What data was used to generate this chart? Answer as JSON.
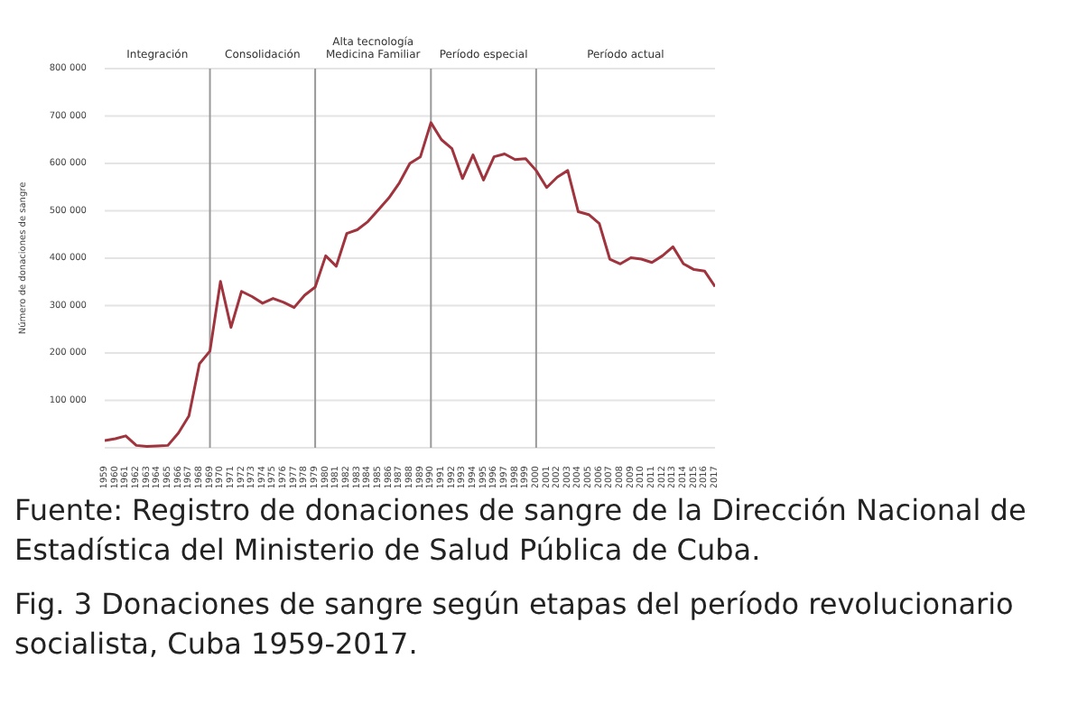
{
  "chart_data": {
    "type": "line",
    "ylabel": "Número de donaciones de sangre",
    "categories": [
      "1959",
      "1960",
      "1961",
      "1962",
      "1963",
      "1964",
      "1965",
      "1966",
      "1967",
      "1968",
      "1969",
      "1970",
      "1971",
      "1972",
      "1973",
      "1974",
      "1975",
      "1976",
      "1977",
      "1978",
      "1979",
      "1980",
      "1981",
      "1982",
      "1983",
      "1984",
      "1985",
      "1986",
      "1987",
      "1988",
      "1989",
      "1990",
      "1991",
      "1992",
      "1993",
      "1994",
      "1995",
      "1996",
      "1997",
      "1998",
      "1999",
      "2000",
      "2001",
      "2002",
      "2003",
      "2004",
      "2005",
      "2006",
      "2007",
      "2008",
      "2009",
      "2010",
      "2011",
      "2012",
      "2013",
      "2014",
      "2015",
      "2016",
      "2017"
    ],
    "series": [
      {
        "color": "#a0343e",
        "values": [
          15000,
          19000,
          25000,
          5000,
          3000,
          4000,
          5000,
          31000,
          67000,
          177000,
          204000,
          351000,
          254000,
          330000,
          319000,
          305000,
          315000,
          307000,
          296000,
          322000,
          339000,
          405000,
          383000,
          452000,
          460000,
          477000,
          502000,
          527000,
          559000,
          600000,
          614000,
          686000,
          650000,
          631000,
          568000,
          618000,
          565000,
          614000,
          620000,
          608000,
          610000,
          585000,
          549000,
          571000,
          585000,
          498000,
          492000,
          473000,
          398000,
          388000,
          401000,
          398000,
          391000,
          405000,
          424000,
          388000,
          376000,
          373000,
          340000
        ]
      }
    ],
    "ylim": [
      0,
      800000
    ],
    "yticks": [
      {
        "value": 100000,
        "label": "100 000"
      },
      {
        "value": 200000,
        "label": "200 000"
      },
      {
        "value": 300000,
        "label": "300 000"
      },
      {
        "value": 400000,
        "label": "400 000"
      },
      {
        "value": 500000,
        "label": "500 000"
      },
      {
        "value": 600000,
        "label": "600 000"
      },
      {
        "value": 700000,
        "label": "700 000"
      },
      {
        "value": 800000,
        "label": "800 000"
      }
    ],
    "grid": "y",
    "legend": false,
    "marker": "none",
    "line_style": "solid",
    "ref_lines": [
      {
        "axis": "x",
        "value": "1969",
        "color": "#999999"
      },
      {
        "axis": "x",
        "value": "1979",
        "color": "#999999"
      },
      {
        "axis": "x",
        "value": "1990",
        "color": "#999999"
      },
      {
        "axis": "x",
        "value": "2000",
        "color": "#999999"
      }
    ],
    "annotations": [
      "Integración",
      "Consolidación",
      "Alta tecnología Medicina Familiar",
      "Período especial",
      "Período actual",
      "Fuente: Registro de donaciones de sangre de la Dirección Nacional de Estadística del Ministerio de Salud Pública de Cuba.",
      "Fig. 3 Donaciones de sangre según etapas del período revolucionario socialista, Cuba 1959-2017."
    ]
  }
}
